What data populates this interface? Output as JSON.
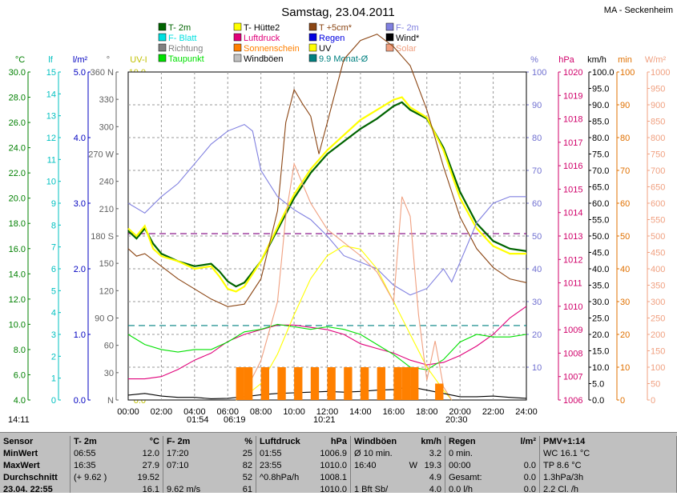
{
  "header": {
    "title": "Samstag, 23.04.2011",
    "station": "MA - Seckenheim"
  },
  "legend": [
    {
      "label": "T- 2m",
      "color": "#006400"
    },
    {
      "label": "T- Hütte2",
      "color": "#ffff00"
    },
    {
      "label": "T +5cm*",
      "color": "#8b4513"
    },
    {
      "label": "F- 2m",
      "color": "#8080e0"
    },
    {
      "label": "F- Blatt",
      "color": "#00e0e0"
    },
    {
      "label": "Luftdruck",
      "color": "#e0007a"
    },
    {
      "label": "Regen",
      "color": "#0000e0"
    },
    {
      "label": "Wind*",
      "color": "#000000"
    },
    {
      "label": "Richtung",
      "color": "#808080"
    },
    {
      "label": "Sonnenschein",
      "color": "#ff8000"
    },
    {
      "label": "UV",
      "color": "#ffff00"
    },
    {
      "label": "Solar",
      "color": "#f0a080"
    },
    {
      "label": "Taupunkt",
      "color": "#00e000"
    },
    {
      "label": "Windböen",
      "color": "#c0c0c0"
    },
    {
      "label": "9.9 Monat-Ø",
      "color": "#008080"
    }
  ],
  "axis_units": {
    "temp": "°C",
    "leaf": "lf",
    "rain": "l/m²",
    "dir": "°",
    "uv": "UV-I",
    "hum": "%",
    "press": "hPa",
    "wind": "km/h",
    "min": "min",
    "solar": "W/m²"
  },
  "axes": {
    "temp": [
      "4.0",
      "6.0",
      "8.0",
      "10.0",
      "12.0",
      "14.0",
      "16.0",
      "18.0",
      "20.0",
      "22.0",
      "24.0",
      "26.0",
      "28.0",
      "30.0"
    ],
    "leaf": [
      "0",
      "1",
      "2",
      "3",
      "4",
      "5",
      "6",
      "7",
      "8",
      "9",
      "10",
      "11",
      "12",
      "13",
      "14",
      "15"
    ],
    "rain": [
      "0.0",
      "1.0",
      "2.0",
      "3.0",
      "4.0",
      "5.0"
    ],
    "dir": [
      "N",
      "30",
      "60",
      "90 O",
      "120",
      "150",
      "180 S",
      "210",
      "240",
      "270 W",
      "300",
      "330",
      "360 N"
    ],
    "uv": [
      "0.0",
      "1.0",
      "2.0",
      "3.0",
      "4.0",
      "5.0",
      "6.0",
      "7.0",
      "8.0",
      "9.0",
      "10.0"
    ],
    "hum": [
      "10",
      "20",
      "30",
      "40",
      "50",
      "60",
      "70",
      "80",
      "90",
      "100"
    ],
    "press": [
      "1006",
      "1007",
      "1008",
      "1009",
      "1010",
      "1011",
      "1012",
      "1013",
      "1014",
      "1015",
      "1016",
      "1017",
      "1018",
      "1019",
      "1020"
    ],
    "wind": [
      "0.0",
      "5.0",
      "10.0",
      "15.0",
      "20.0",
      "25.0",
      "30.0",
      "35.0",
      "40.0",
      "45.0",
      "50.0",
      "55.0",
      "60.0",
      "65.0",
      "70.0",
      "75.0",
      "80.0",
      "85.0",
      "90.0",
      "95.0",
      "100.0"
    ],
    "min": [
      "0",
      "10",
      "20",
      "30",
      "40",
      "50",
      "60",
      "70",
      "80",
      "90",
      "100"
    ],
    "solar": [
      "0",
      "50",
      "100",
      "150",
      "200",
      "250",
      "300",
      "350",
      "400",
      "450",
      "500",
      "550",
      "600",
      "650",
      "700",
      "750",
      "800",
      "850",
      "900",
      "950",
      "1000"
    ],
    "time": [
      "00:00",
      "02:00",
      "04:00",
      "06:00",
      "08:00",
      "10:00",
      "12:00",
      "14:00",
      "16:00",
      "18:00",
      "20:00",
      "22:00",
      "24:00"
    ]
  },
  "sun_events": {
    "sunrise_left": "14:11",
    "moon1": "01:54",
    "moon2": "06:19",
    "noon": "10:21",
    "sunset": "20:30"
  },
  "chart_data": {
    "type": "line",
    "x_unit": "hour",
    "xlim": [
      0,
      24
    ],
    "series": [
      {
        "name": "T- 2m",
        "axis": "°C",
        "color": "#006400",
        "x": [
          0,
          0.5,
          1,
          1.5,
          2,
          3,
          4,
          5,
          5.5,
          6,
          6.5,
          7,
          8,
          9,
          10,
          11,
          12,
          13,
          14,
          15,
          16,
          16.5,
          17,
          18,
          19,
          20,
          21,
          22,
          23,
          24
        ],
        "y": [
          17.4,
          16.8,
          17.6,
          16.4,
          15.6,
          15.0,
          14.6,
          14.8,
          14.2,
          13.4,
          13.0,
          13.3,
          15.0,
          17.5,
          20.0,
          22.0,
          23.5,
          24.5,
          25.5,
          26.3,
          27.3,
          27.6,
          27.0,
          26.3,
          24.0,
          20.5,
          18.0,
          16.6,
          16.0,
          15.8
        ]
      },
      {
        "name": "T- Hütte2",
        "axis": "°C",
        "color": "#ffff00",
        "x": [
          0,
          0.5,
          1,
          1.5,
          2,
          3,
          4,
          5,
          5.5,
          6,
          6.5,
          7,
          8,
          9,
          10,
          11,
          12,
          13,
          14,
          15,
          16,
          16.5,
          17,
          18,
          19,
          20,
          21,
          22,
          23,
          24
        ],
        "y": [
          17.6,
          17.0,
          17.8,
          16.0,
          15.4,
          15.0,
          14.4,
          14.6,
          13.8,
          12.8,
          12.6,
          13.0,
          15.0,
          17.7,
          20.3,
          22.3,
          23.8,
          25.0,
          26.2,
          27.0,
          27.8,
          28.0,
          27.2,
          26.4,
          23.8,
          20.0,
          17.6,
          16.2,
          15.6,
          15.6
        ]
      },
      {
        "name": "T +5cm*",
        "axis": "°C",
        "color": "#8b4513",
        "x": [
          0,
          0.5,
          1,
          2,
          3,
          4,
          5,
          6,
          7,
          8,
          9,
          9.5,
          10,
          10.5,
          11,
          11.5,
          12,
          13,
          14,
          15,
          16,
          17,
          18,
          19,
          20,
          21,
          22,
          23,
          24
        ],
        "y": [
          16.0,
          15.4,
          15.6,
          14.6,
          13.6,
          12.8,
          12.0,
          11.4,
          11.6,
          13.6,
          19.0,
          26.0,
          28.6,
          27.5,
          26.5,
          23.5,
          26.0,
          31.0,
          32.5,
          33.0,
          32.0,
          30.5,
          27.0,
          22.5,
          18.5,
          16.0,
          14.5,
          13.6,
          13.3
        ]
      },
      {
        "name": "F- 2m",
        "axis": "%",
        "color": "#8080e0",
        "x": [
          0,
          1,
          2,
          3,
          4,
          5,
          6,
          7,
          7.5,
          8,
          9,
          10,
          11,
          12,
          13,
          14,
          15,
          16,
          17,
          18,
          19,
          19.5,
          20,
          21,
          22,
          23,
          24
        ],
        "y": [
          60,
          57,
          62,
          66,
          72,
          78,
          82,
          84,
          82,
          70,
          62,
          58,
          55,
          50,
          44,
          42,
          40,
          35,
          32,
          34,
          40,
          36,
          42,
          54,
          60,
          62,
          62
        ]
      },
      {
        "name": "Luftdruck",
        "axis": "hPa",
        "color": "#e0007a",
        "x": [
          0,
          1,
          2,
          3,
          4,
          5,
          6,
          7,
          8,
          9,
          10,
          11,
          12,
          13,
          14,
          15,
          16,
          17,
          18,
          19,
          20,
          21,
          22,
          23,
          24
        ],
        "y": [
          1006.9,
          1006.9,
          1007.0,
          1007.3,
          1007.7,
          1008.0,
          1008.5,
          1008.8,
          1009.0,
          1009.2,
          1009.2,
          1009.1,
          1009.0,
          1008.8,
          1008.4,
          1008.2,
          1008.0,
          1007.7,
          1007.5,
          1007.6,
          1007.9,
          1008.3,
          1008.8,
          1009.5,
          1010.0
        ]
      },
      {
        "name": "Taupunkt",
        "axis": "°C",
        "color": "#00e000",
        "x": [
          0,
          1,
          2,
          3,
          4,
          5,
          6,
          7,
          8,
          9,
          10,
          11,
          12,
          13,
          14,
          15,
          16,
          17,
          18,
          19,
          20,
          21,
          22,
          23,
          24
        ],
        "y": [
          9.2,
          8.4,
          8.0,
          7.8,
          8.0,
          8.0,
          8.6,
          9.4,
          9.6,
          10.0,
          9.8,
          9.6,
          9.8,
          9.6,
          9.2,
          8.4,
          7.6,
          6.6,
          6.4,
          7.2,
          8.6,
          9.2,
          9.0,
          9.0,
          9.2
        ]
      },
      {
        "name": "UV",
        "axis": "UV-I",
        "color": "#ffff00",
        "x": [
          6.5,
          7,
          8,
          9,
          10,
          11,
          12,
          13,
          14,
          15,
          16,
          17,
          18,
          19,
          19.5
        ],
        "y": [
          0.0,
          0.1,
          0.5,
          1.4,
          2.6,
          3.7,
          4.4,
          4.7,
          4.6,
          4.0,
          3.0,
          2.0,
          1.0,
          0.3,
          0.0
        ]
      },
      {
        "name": "Solar",
        "axis": "W/m²",
        "color": "#f0a080",
        "x": [
          6.5,
          7,
          8,
          9,
          9.5,
          10,
          11,
          12,
          13,
          14,
          15,
          16,
          16.5,
          17,
          17.5,
          18,
          18.5,
          19,
          19.5
        ],
        "y": [
          0,
          20,
          120,
          300,
          560,
          720,
          600,
          520,
          480,
          440,
          390,
          300,
          620,
          560,
          260,
          60,
          180,
          40,
          0
        ]
      },
      {
        "name": "Wind*",
        "axis": "km/h",
        "color": "#000000",
        "x": [
          0,
          1,
          2,
          3,
          4,
          5,
          6,
          7,
          8,
          9,
          10,
          11,
          12,
          13,
          14,
          15,
          16,
          17,
          18,
          19,
          20,
          21,
          22,
          23,
          24
        ],
        "y": [
          1.5,
          2.0,
          1.2,
          0.8,
          0.8,
          0.4,
          0.5,
          1.0,
          1.6,
          2.0,
          2.2,
          2.4,
          2.6,
          2.4,
          2.6,
          3.0,
          3.2,
          4.0,
          3.0,
          2.0,
          1.0,
          1.0,
          1.2,
          0.8,
          0.5
        ]
      },
      {
        "name": "Sonnenschein",
        "axis": "min",
        "color": "#ff8000",
        "type": "bar",
        "x": [
          6.5,
          7,
          8,
          9,
          10,
          11,
          12,
          13,
          14,
          15,
          16,
          16.5,
          17,
          18.5
        ],
        "y": [
          10,
          10,
          10,
          10,
          10,
          10,
          10,
          10,
          10,
          10,
          10,
          10,
          10,
          5
        ]
      }
    ],
    "reference_lines": [
      {
        "name": "9.9 Monat-Ø",
        "axis": "°C",
        "value": 9.9,
        "color": "#008080",
        "style": "dashed"
      },
      {
        "axis": "hPa",
        "value": 1013.1,
        "color": "#800080",
        "style": "dashed"
      }
    ],
    "grid": true
  },
  "table": {
    "columns": [
      {
        "title": "Sensor",
        "unit": "",
        "rows": [
          [
            "MinWert",
            "",
            ""
          ],
          [
            "MaxWert",
            "",
            ""
          ],
          [
            "Durchschnitt",
            "",
            ""
          ],
          [
            "23.04. 22:55",
            "",
            ""
          ]
        ]
      },
      {
        "title": "T- 2m",
        "unit": "°C",
        "rows": [
          [
            "06:55",
            "",
            "12.0"
          ],
          [
            "16:35",
            "",
            "27.9"
          ],
          [
            "(+ 9.62 )",
            "",
            "19.52"
          ],
          [
            "",
            "",
            "16.1"
          ]
        ]
      },
      {
        "title": "F- 2m",
        "unit": "%",
        "rows": [
          [
            "17:20",
            "",
            "25"
          ],
          [
            "07:10",
            "",
            "82"
          ],
          [
            "",
            "",
            "52"
          ],
          [
            "9.62 m/s",
            "",
            "61"
          ]
        ]
      },
      {
        "title": "Luftdruck",
        "unit": "hPa",
        "rows": [
          [
            "01:55",
            "",
            "1006.9"
          ],
          [
            "23:55",
            "",
            "1010.0"
          ],
          [
            "^0.8hPa/h",
            "",
            "1008.1"
          ],
          [
            "",
            "",
            "1010.0"
          ]
        ]
      },
      {
        "title": "Windböen",
        "unit": "km/h",
        "rows": [
          [
            "Ø 10 min.",
            "",
            "3.2"
          ],
          [
            "16:40",
            "W",
            "19.3"
          ],
          [
            "",
            "",
            "4.9"
          ],
          [
            "1 Bft Sb/",
            "",
            "4.0"
          ]
        ]
      },
      {
        "title": "Regen",
        "unit": "l/m²",
        "rows": [
          [
            "0 min.",
            "",
            ""
          ],
          [
            "00:00",
            "",
            "0.0"
          ],
          [
            "Gesamt:",
            "",
            "0.0"
          ],
          [
            "0.0 l/h",
            "",
            "0.0"
          ]
        ]
      },
      {
        "title": "PMV+1:14",
        "unit": "",
        "rows": [
          [
            "WC 16.1 °C",
            "",
            ""
          ],
          [
            "TP 8.6 °C",
            "",
            ""
          ],
          [
            "1.3hPa/3h",
            "",
            ""
          ],
          [
            "2.2 Cl. /h",
            "",
            ""
          ]
        ]
      }
    ]
  }
}
